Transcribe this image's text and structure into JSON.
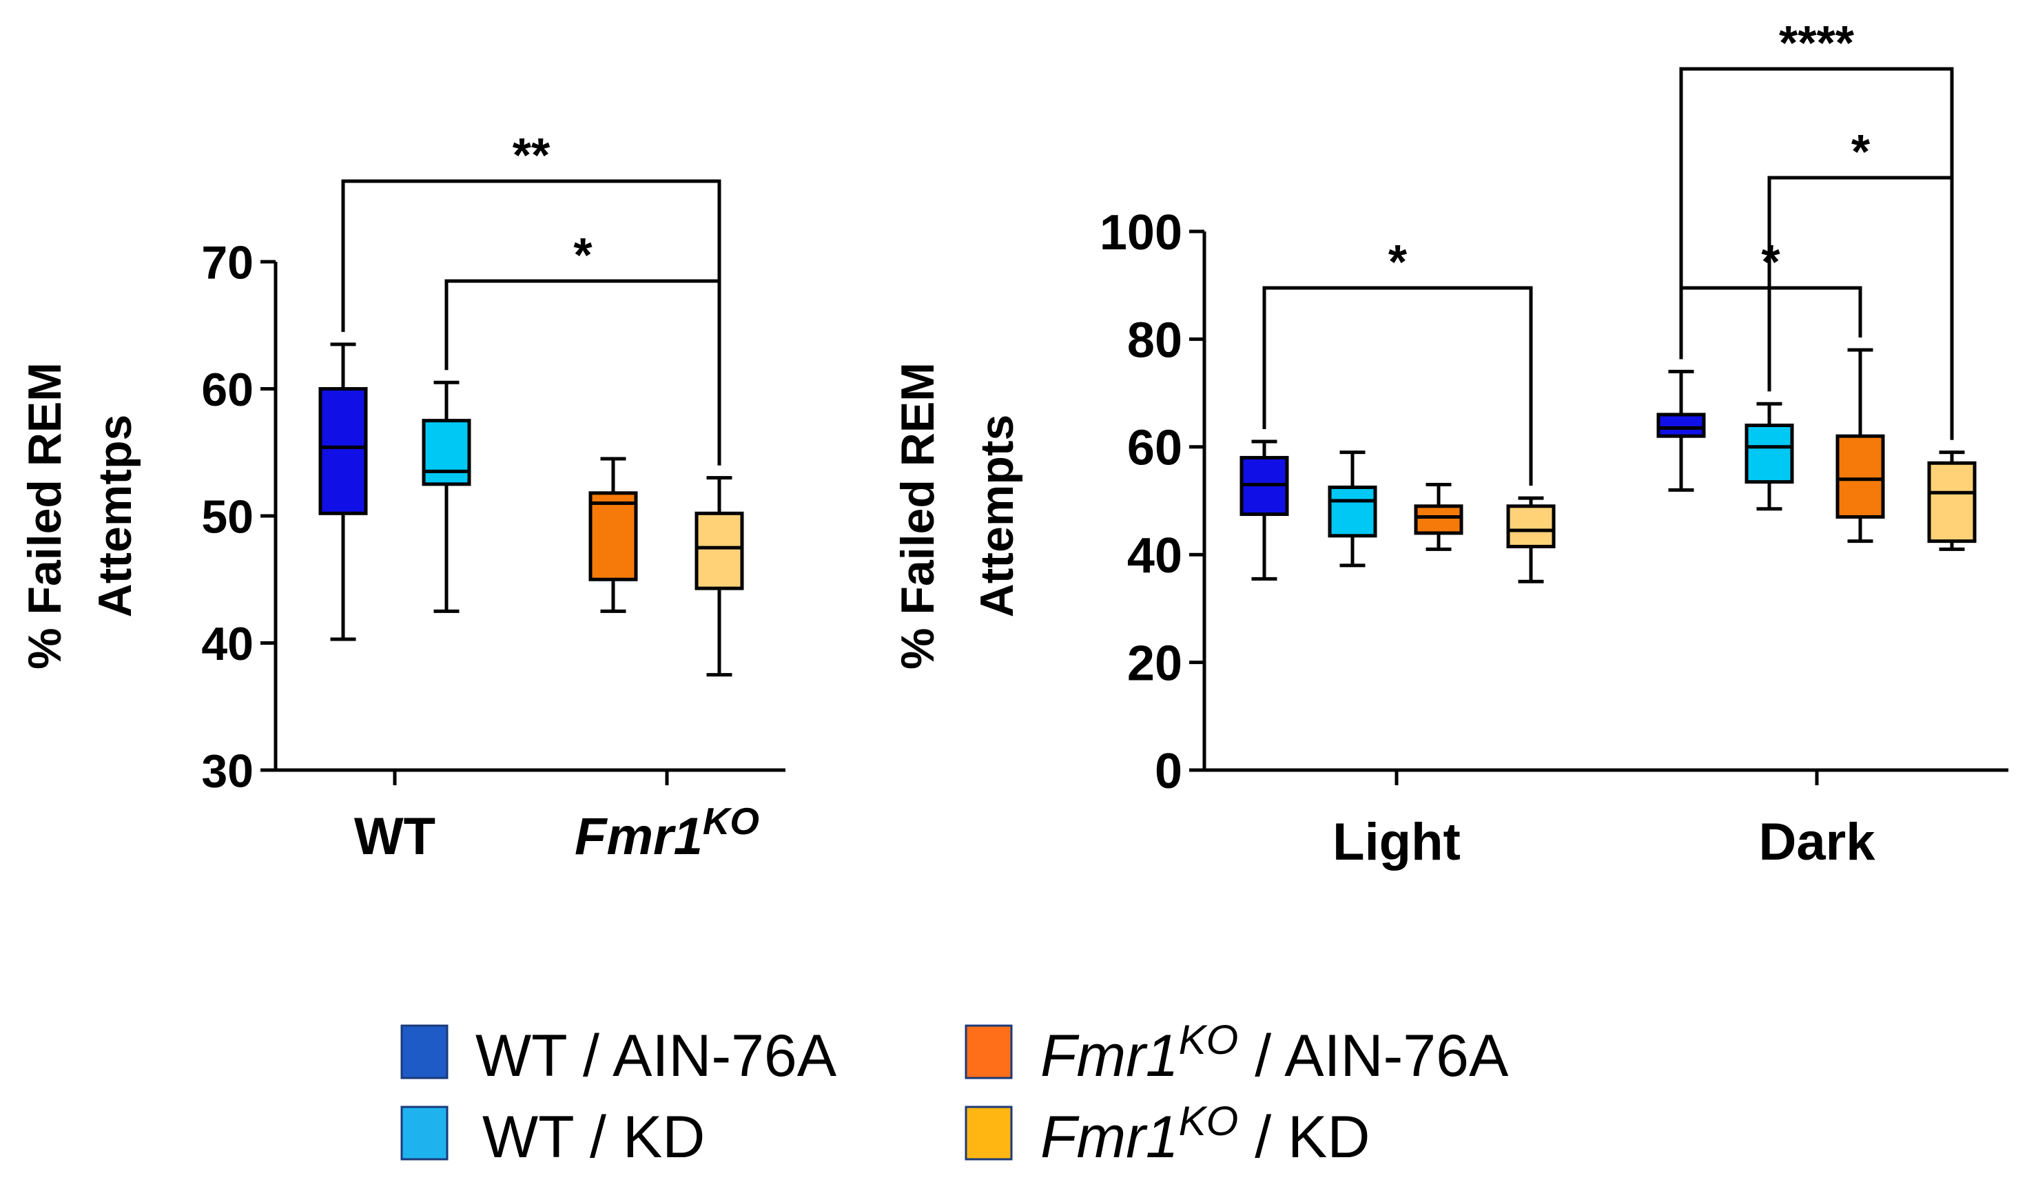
{
  "chart_data": [
    {
      "type": "box",
      "panel": "left",
      "ylabel": [
        "% Failed REM",
        "Attemtps"
      ],
      "ylim": [
        30,
        70
      ],
      "yticks": [
        30,
        40,
        50,
        60,
        70
      ],
      "ytick_labels": [
        "30",
        "40",
        "50",
        "60",
        "70"
      ],
      "categories": [
        {
          "label": "WT",
          "italic": false,
          "sup": ""
        },
        {
          "label": "Fmr1",
          "italic": true,
          "sup": "KO"
        }
      ],
      "boxes": [
        {
          "series": "WT / AIN-76A",
          "group": 0,
          "min": 40.3,
          "q1": 50.2,
          "median": 55.4,
          "q3": 60,
          "max": 63.5
        },
        {
          "series": "WT / KD",
          "group": 0,
          "min": 42.5,
          "q1": 52.5,
          "median": 53.5,
          "q3": 57.5,
          "max": 60.5
        },
        {
          "series": "Fmr1KO / AIN-76A",
          "group": 1,
          "min": 42.5,
          "q1": 45,
          "median": 51,
          "q3": 51.8,
          "max": 54.5
        },
        {
          "series": "Fmr1KO / KD",
          "group": 1,
          "min": 37.5,
          "q1": 44.3,
          "median": 47.5,
          "q3": 50.2,
          "max": 53
        }
      ],
      "significance": [
        {
          "from": 0,
          "to": 3,
          "label": "**"
        },
        {
          "from": 1,
          "to": 3,
          "label": "*"
        }
      ]
    },
    {
      "type": "box",
      "panel": "right",
      "ylabel": [
        "% Failed REM",
        "Attempts"
      ],
      "ylim": [
        0,
        100
      ],
      "yticks": [
        0,
        20,
        40,
        60,
        80,
        100
      ],
      "ytick_labels": [
        "0",
        "20",
        "40",
        "60",
        "80",
        "100"
      ],
      "categories": [
        {
          "label": "Light",
          "italic": false,
          "sup": ""
        },
        {
          "label": "Dark",
          "italic": false,
          "sup": ""
        }
      ],
      "boxes": [
        {
          "series": "WT / AIN-76A",
          "group": 0,
          "min": 35.5,
          "q1": 47.5,
          "median": 53,
          "q3": 58,
          "max": 61
        },
        {
          "series": "WT / KD",
          "group": 0,
          "min": 38,
          "q1": 43.5,
          "median": 50,
          "q3": 52.5,
          "max": 59
        },
        {
          "series": "Fmr1KO / AIN-76A",
          "group": 0,
          "min": 41,
          "q1": 44,
          "median": 47,
          "q3": 49,
          "max": 53
        },
        {
          "series": "Fmr1KO / KD",
          "group": 0,
          "min": 35,
          "q1": 41.5,
          "median": 44.5,
          "q3": 49,
          "max": 50.5
        },
        {
          "series": "WT / AIN-76A",
          "group": 1,
          "min": 52,
          "q1": 62,
          "median": 63.5,
          "q3": 66,
          "max": 74
        },
        {
          "series": "WT / KD",
          "group": 1,
          "min": 48.5,
          "q1": 53.5,
          "median": 60,
          "q3": 64,
          "max": 68
        },
        {
          "series": "Fmr1KO / AIN-76A",
          "group": 1,
          "min": 42.5,
          "q1": 47,
          "median": 54,
          "q3": 62,
          "max": 78
        },
        {
          "series": "Fmr1KO / KD",
          "group": 1,
          "min": 41,
          "q1": 42.5,
          "median": 51.5,
          "q3": 57,
          "max": 59
        }
      ],
      "significance": [
        {
          "from": 0,
          "to": 3,
          "label": "*"
        },
        {
          "from": 4,
          "to": 7,
          "label": "****"
        },
        {
          "from": 5,
          "to": 7,
          "label": "*"
        },
        {
          "from": 4,
          "to": 6,
          "label": "*"
        }
      ]
    }
  ],
  "legend": [
    {
      "name": "WT",
      "italic": false,
      "sup": "",
      "rest": " / AIN-76A",
      "color": "#1a5bc4",
      "swatch": "#1e5bc6"
    },
    {
      "name": "Fmr1",
      "italic": true,
      "sup": "KO",
      "rest": " / AIN-76A",
      "color": "#ff7a10",
      "swatch": "#ff6f1a"
    },
    {
      "name": "WT",
      "italic": false,
      "sup": "",
      "rest": " / KD",
      "color": "#1fb5f0",
      "swatch": "#1eb3ef"
    },
    {
      "name": "Fmr1",
      "italic": true,
      "sup": "KO",
      "rest": " / KD",
      "color": "#ffb400",
      "swatch": "#ffb612"
    }
  ],
  "colors": {
    "WT / AIN-76A": "#1010e6",
    "WT / KD": "#00c8f5",
    "Fmr1KO / AIN-76A": "#f57a0a",
    "Fmr1KO / KD": "#ffd278"
  }
}
